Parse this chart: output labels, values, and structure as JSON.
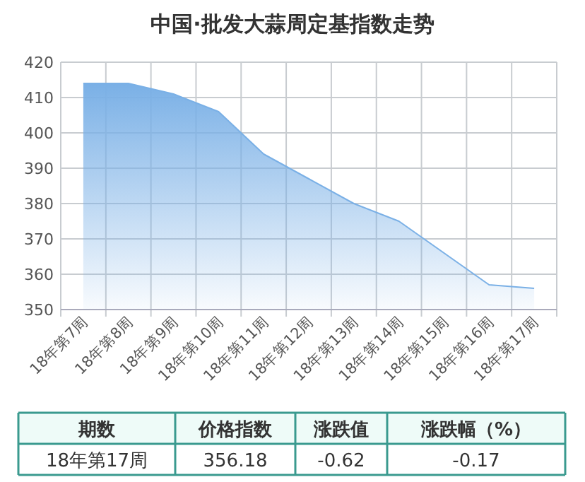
{
  "chart_data": {
    "type": "area",
    "title": "中国·批发大蒜周定基指数走势",
    "categories": [
      "18年第7周",
      "18年第8周",
      "18年第9周",
      "18年第10周",
      "18年第11周",
      "18年第12周",
      "18年第13周",
      "18年第14周",
      "18年第15周",
      "18年第16周",
      "18年第17周"
    ],
    "values": [
      414,
      414,
      411,
      406,
      394,
      387,
      380,
      375,
      366,
      357,
      356
    ],
    "color": "#7ab0e6",
    "ylim": [
      350,
      420
    ],
    "yticks": [
      350,
      360,
      370,
      380,
      390,
      400,
      410,
      420
    ],
    "grid": true,
    "annotations": [
      "期数",
      "价格指数",
      "涨跌值",
      "涨跌幅（%）",
      "18年第17周",
      "356.18",
      "-0.62",
      "-0.17"
    ]
  }
}
